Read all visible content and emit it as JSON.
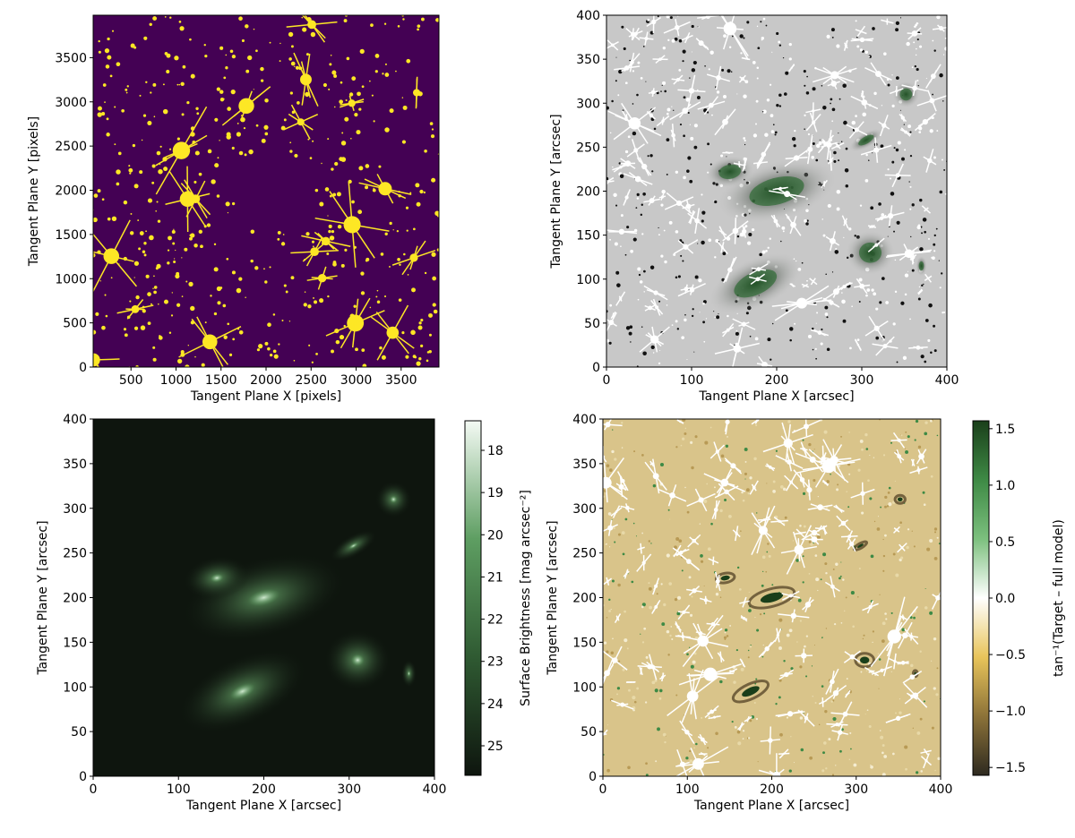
{
  "chart_data": [
    {
      "type": "heatmap",
      "panel": "top-left",
      "xlabel": "Tangent Plane X [pixels]",
      "ylabel": "Tangent Plane Y  [pixels]",
      "xlim": [
        80,
        3920
      ],
      "ylim": [
        0,
        3980
      ],
      "xticks": [
        "500",
        "1000",
        "1500",
        "2000",
        "2500",
        "3000",
        "3500"
      ],
      "xtick_values": [
        500,
        1000,
        1500,
        2000,
        2500,
        3000,
        3500
      ],
      "yticks": [
        "0",
        "500",
        "1000",
        "1500",
        "2000",
        "2500",
        "3000",
        "3500"
      ],
      "ytick_values": [
        0,
        500,
        1000,
        1500,
        2000,
        2500,
        3000,
        3500
      ],
      "colors": {
        "background": "#440154",
        "mask": "#fde725"
      }
    },
    {
      "type": "heatmap",
      "panel": "top-right",
      "xlabel": "Tangent Plane X [arcsec]",
      "ylabel": "Tangent Plane Y [arcsec]",
      "xlim": [
        0,
        400
      ],
      "ylim": [
        0,
        400
      ],
      "xticks": [
        "0",
        "100",
        "200",
        "300",
        "400"
      ],
      "xtick_values": [
        0,
        100,
        200,
        300,
        400
      ],
      "yticks": [
        "0",
        "50",
        "100",
        "150",
        "200",
        "250",
        "300",
        "350",
        "400"
      ],
      "ytick_values": [
        0,
        50,
        100,
        150,
        200,
        250,
        300,
        350,
        400
      ],
      "colors": {
        "background": "#c8c8c8",
        "galaxy": "#2f6b35"
      }
    },
    {
      "type": "heatmap",
      "panel": "bottom-left",
      "xlabel": "Tangent Plane X [arcsec]",
      "ylabel": "Tangent Plane Y [arcsec]",
      "xlim": [
        0,
        400
      ],
      "ylim": [
        0,
        400
      ],
      "xticks": [
        "0",
        "100",
        "200",
        "300",
        "400"
      ],
      "xtick_values": [
        0,
        100,
        200,
        300,
        400
      ],
      "yticks": [
        "0",
        "50",
        "100",
        "150",
        "200",
        "250",
        "300",
        "350",
        "400"
      ],
      "ytick_values": [
        0,
        50,
        100,
        150,
        200,
        250,
        300,
        350,
        400
      ],
      "colorbar": {
        "label": "Surface Brightness [mag arcsec⁻²]",
        "range": [
          25.7,
          17.3
        ],
        "ticks": [
          "18",
          "19",
          "20",
          "21",
          "22",
          "23",
          "24",
          "25"
        ],
        "tick_values": [
          18,
          19,
          20,
          21,
          22,
          23,
          24,
          25
        ],
        "colors": [
          "#0e150e",
          "#2f5a32",
          "#5e9e62",
          "#f4faf4"
        ]
      }
    },
    {
      "type": "heatmap",
      "panel": "bottom-right",
      "xlabel": "Tangent Plane X [arcsec]",
      "ylabel": "Tangent Plane Y [arcsec]",
      "xlim": [
        0,
        400
      ],
      "ylim": [
        0,
        400
      ],
      "xticks": [
        "0",
        "100",
        "200",
        "300",
        "400"
      ],
      "xtick_values": [
        0,
        100,
        200,
        300,
        400
      ],
      "yticks": [
        "0",
        "50",
        "100",
        "150",
        "200",
        "250",
        "300",
        "350",
        "400"
      ],
      "ytick_values": [
        0,
        50,
        100,
        150,
        200,
        250,
        300,
        350,
        400
      ],
      "colorbar": {
        "label": "tan⁻¹(Target – full model)",
        "range": [
          -1.57,
          1.57
        ],
        "ticks": [
          "−1.5",
          "−1.0",
          "−0.5",
          "0.0",
          "0.5",
          "1.0",
          "1.5"
        ],
        "tick_values": [
          -1.5,
          -1.0,
          -0.5,
          0.0,
          0.5,
          1.0,
          1.5
        ],
        "colors": [
          "#2e2a20",
          "#8c7238",
          "#e8c45a",
          "#ffffff",
          "#7cc07e",
          "#3e8a45",
          "#1a3f1a"
        ]
      }
    }
  ]
}
